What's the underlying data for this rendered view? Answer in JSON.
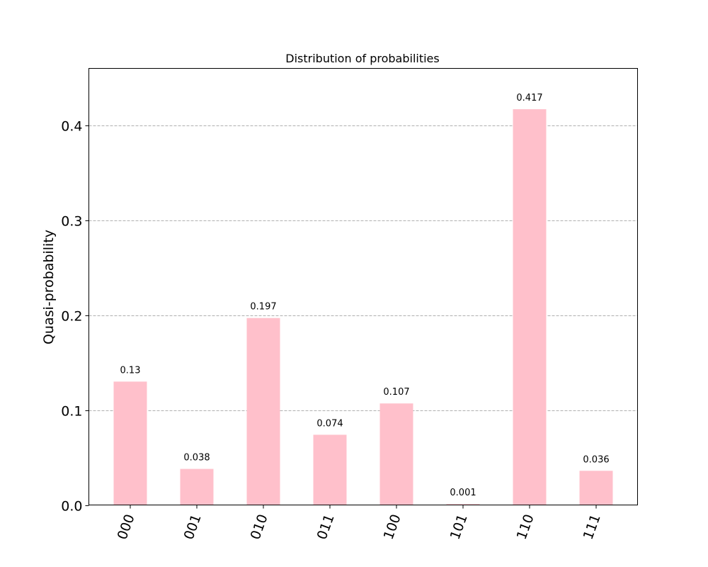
{
  "chart_data": {
    "type": "bar",
    "title": "Distribution of probabilities",
    "xlabel": "",
    "ylabel": "Quasi-probability",
    "categories": [
      "000",
      "001",
      "010",
      "011",
      "100",
      "101",
      "110",
      "111"
    ],
    "values": [
      0.13,
      0.038,
      0.197,
      0.074,
      0.107,
      0.001,
      0.417,
      0.036
    ],
    "data_labels": [
      "0.13",
      "0.038",
      "0.197",
      "0.074",
      "0.107",
      "0.001",
      "0.417",
      "0.036"
    ],
    "ylim": [
      0,
      0.46
    ],
    "yticks": [
      0.0,
      0.1,
      0.2,
      0.3,
      0.4
    ],
    "ytick_labels": [
      "0.0",
      "0.1",
      "0.2",
      "0.3",
      "0.4"
    ],
    "grid": "y-dashed",
    "bar_color": "#ffc0cb",
    "legend": "none"
  }
}
